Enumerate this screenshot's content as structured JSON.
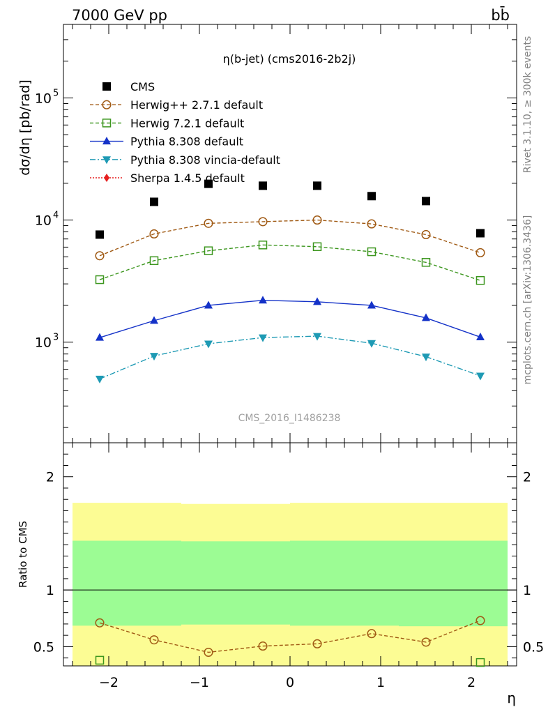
{
  "header": {
    "left": "7000 GeV pp",
    "right": "bb̄"
  },
  "side_labels": {
    "rivet": "Rivet 3.1.10, ≥ 300k events",
    "mcplots": "mcplots.cern.ch [arXiv:1306.3436]"
  },
  "chart_data": {
    "type": "scatter",
    "title": "η(b-jet) (cms2016-2b2j)",
    "watermark": "CMS_2016_I1486238",
    "xlabel": "η",
    "ylabel": "dσ/dη [pb/rad]",
    "ratio_ylabel": "Ratio to CMS",
    "xlim": [
      -2.5,
      2.5
    ],
    "ylim": [
      150,
      400000
    ],
    "yscale": "log",
    "ratio_ylim": [
      0.33,
      2.3
    ],
    "x_ticks": [
      "−2",
      "−1",
      "0",
      "1",
      "2"
    ],
    "y_ticks": [
      "10^3",
      "10^4",
      "10^5"
    ],
    "ratio_ticks": [
      "0.5",
      "1",
      "2"
    ],
    "legend_position": "top-left",
    "x": [
      -2.1,
      -1.5,
      -0.9,
      -0.3,
      0.3,
      0.9,
      1.5,
      2.1
    ],
    "series": [
      {
        "name": "CMS",
        "marker": "square-filled",
        "color": "#000000",
        "line": "none",
        "values": [
          7600,
          14100,
          19800,
          19100,
          19100,
          15700,
          14300,
          7800
        ]
      },
      {
        "name": "Herwig++ 2.7.1 default",
        "marker": "circle-open",
        "color": "#a05a14",
        "line": "dashed",
        "values": [
          5100,
          7700,
          9400,
          9700,
          10000,
          9300,
          7600,
          5400
        ]
      },
      {
        "name": "Herwig 7.2.1 default",
        "marker": "square-open",
        "color": "#3c961e",
        "line": "dashed",
        "values": [
          3250,
          4650,
          5600,
          6250,
          6050,
          5500,
          4500,
          3200
        ]
      },
      {
        "name": "Pythia 8.308 default",
        "marker": "triangle-up",
        "color": "#1432c8",
        "line": "solid",
        "values": [
          1090,
          1500,
          2000,
          2200,
          2140,
          2000,
          1580,
          1100
        ]
      },
      {
        "name": "Pythia 8.308 vincia-default",
        "marker": "triangle-down",
        "color": "#1e9ab4",
        "line": "dashdot",
        "values": [
          500,
          770,
          970,
          1090,
          1120,
          980,
          760,
          530
        ]
      },
      {
        "name": "Sherpa 1.4.5 default",
        "marker": "diamond",
        "color": "#e61e1e",
        "line": "dotted",
        "values": []
      }
    ],
    "ratio_series": [
      {
        "name": "Herwig++ 2.7.1 default",
        "values": [
          0.71,
          0.56,
          0.45,
          0.505,
          0.525,
          0.615,
          0.54,
          0.73
        ]
      },
      {
        "name": "Herwig 7.2.1 default",
        "values": [
          0.38,
          null,
          null,
          null,
          null,
          null,
          null,
          0.36
        ]
      }
    ],
    "uncertainty_bands": [
      {
        "x_range": [
          -2.4,
          -1.2
        ],
        "inner": [
          0.685,
          1.435
        ],
        "outer": [
          0.33,
          1.77
        ]
      },
      {
        "x_range": [
          -1.2,
          0.0
        ],
        "inner": [
          0.695,
          1.43
        ],
        "outer": [
          0.33,
          1.76
        ]
      },
      {
        "x_range": [
          0.0,
          1.2
        ],
        "inner": [
          0.685,
          1.435
        ],
        "outer": [
          0.33,
          1.77
        ]
      },
      {
        "x_range": [
          1.2,
          2.4
        ],
        "inner": [
          0.68,
          1.435
        ],
        "outer": [
          0.33,
          1.77
        ]
      }
    ],
    "band_colors": {
      "inner": "#9cfc94",
      "outer": "#fcfc94"
    }
  }
}
